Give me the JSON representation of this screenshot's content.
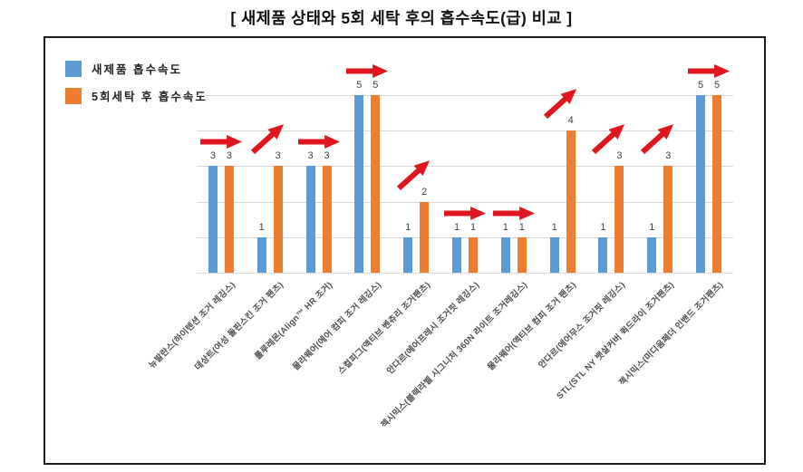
{
  "title": "[ 새제품 상태와 5회 세탁 후의 흡수속도(급) 비교 ]",
  "chart_data": {
    "type": "bar",
    "title": "[ 새제품 상태와 5회 세탁 후의 흡수속도(급) 비교 ]",
    "categories": [
      "뉴발란스(하이텐션 조거 레깅스)",
      "데상트(여성 돌핀스킨 조거 팬츠)",
      "룰루레몬(Align™ HR 조거)",
      "물라웨어(에어 컴피 조거 레깅스)",
      "스컬피그(액티브 벤츄리 조거팬츠)",
      "안다르(에어프레시 조거핏 레깅스)",
      "젝시믹스(블랙라벨 시그니처 360N 라이트 조거레깅스)",
      "물라웨어(액티브 컴피 조거 팬츠)",
      "안다르(에어무스 조거핏 레깅스)",
      "STL(STL NY 뱃살커버 퀵드라이 조거팬츠)",
      "젝시믹스(미디움페더 인밴드 조거팬츠)"
    ],
    "series": [
      {
        "name": "새제품 흡수속도",
        "color": "#5b9bd5",
        "values": [
          3,
          1,
          3,
          5,
          1,
          1,
          1,
          1,
          1,
          1,
          5
        ]
      },
      {
        "name": "5회세탁 후 흡수속도",
        "color": "#ed7d31",
        "values": [
          3,
          3,
          3,
          5,
          2,
          1,
          1,
          4,
          3,
          3,
          5
        ]
      }
    ],
    "bar_value_labels": true,
    "trend_arrows": [
      "same",
      "up",
      "same",
      "same",
      "up",
      "same",
      "same",
      "up",
      "up",
      "up",
      "same"
    ],
    "arrow_color": "#e0161f",
    "ylabel": "",
    "xlabel": "",
    "ylim": [
      0,
      5
    ],
    "gridline_values": [
      0,
      1,
      2,
      3,
      4,
      5
    ],
    "grid": true,
    "legend_position": "top-left"
  }
}
